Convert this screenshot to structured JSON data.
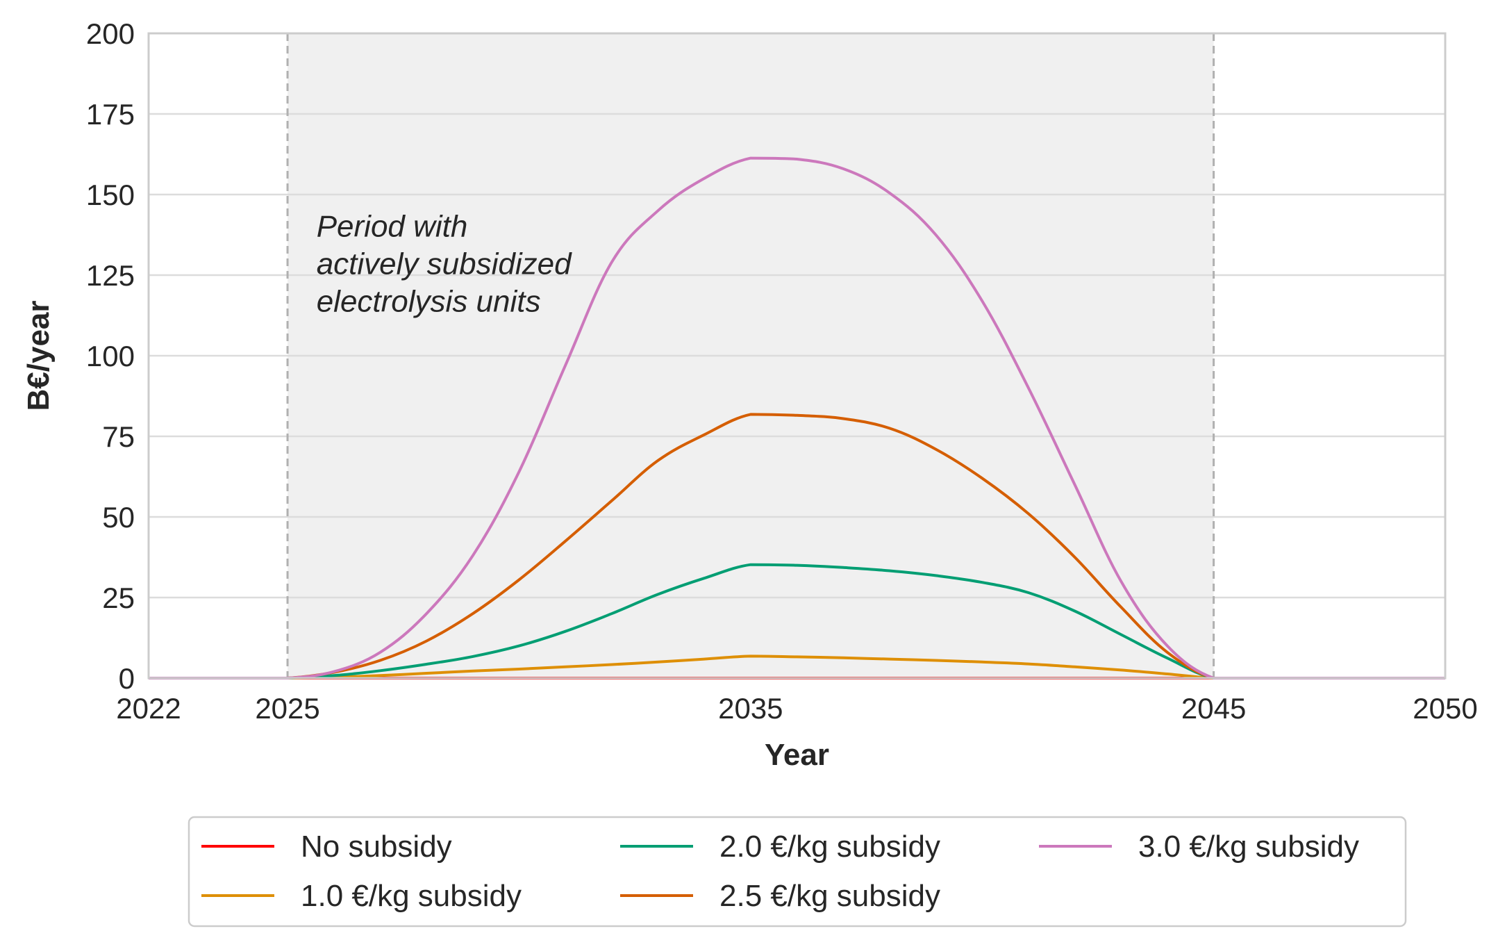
{
  "chart_data": {
    "type": "line",
    "title": "",
    "xlabel": "Year",
    "ylabel": "B€/year",
    "xlim": [
      2022,
      2050
    ],
    "ylim": [
      0,
      200
    ],
    "xticks": [
      2022,
      2025,
      2035,
      2045,
      2050
    ],
    "yticks": [
      0,
      25,
      50,
      75,
      100,
      125,
      150,
      175,
      200
    ],
    "grid": "horizontal",
    "background_colors": {
      "plot": "#ffffff",
      "shaded_region": "#f0f0f0",
      "grid": "#dcdcdc",
      "spine": "#cccccc",
      "vline": "#b0b0b0"
    },
    "shaded_region": {
      "x_start": 2025,
      "x_end": 2045
    },
    "annotation": {
      "lines": [
        "Period with",
        "actively subsidized",
        "electrolysis units"
      ],
      "x": 2026,
      "y": 137
    },
    "x": [
      2022,
      2023,
      2024,
      2025,
      2026,
      2027,
      2028,
      2029,
      2030,
      2031,
      2032,
      2033,
      2034,
      2035,
      2036,
      2037,
      2038,
      2039,
      2040,
      2041,
      2042,
      2043,
      2044,
      2045,
      2046,
      2047,
      2048,
      2049,
      2050
    ],
    "series": [
      {
        "name": "No subsidy",
        "color": "#ff0000",
        "values": [
          0,
          0,
          0,
          0,
          0,
          0,
          0,
          0,
          0,
          0,
          0,
          0,
          0,
          0,
          0,
          0,
          0,
          0,
          0,
          0,
          0,
          0,
          0,
          0,
          0,
          0,
          0,
          0,
          0
        ]
      },
      {
        "name": "1.0 €/kg subsidy",
        "color": "#de8f05",
        "values": [
          0,
          0,
          0,
          0,
          0.3,
          0.8,
          1.5,
          2.2,
          2.8,
          3.5,
          4.2,
          5.0,
          5.9,
          6.8,
          6.6,
          6.3,
          5.9,
          5.5,
          5.0,
          4.4,
          3.5,
          2.5,
          1.3,
          0,
          0,
          0,
          0,
          0,
          0
        ]
      },
      {
        "name": "2.0 €/kg subsidy",
        "color": "#029e73",
        "values": [
          0,
          0,
          0,
          0,
          0.8,
          2.3,
          4.3,
          6.7,
          10.0,
          14.5,
          20.0,
          26.0,
          31.0,
          35.2,
          35.0,
          34.3,
          33.3,
          31.8,
          29.7,
          26.5,
          20.8,
          13.5,
          6.2,
          0,
          0,
          0,
          0,
          0,
          0
        ]
      },
      {
        "name": "2.5 €/kg subsidy",
        "color": "#d55e00",
        "values": [
          0,
          0,
          0,
          0,
          1.8,
          5.5,
          11.5,
          20.0,
          30.5,
          42.5,
          55.0,
          67.5,
          75.5,
          81.8,
          81.5,
          80.5,
          77.5,
          71.0,
          62.0,
          51.0,
          37.5,
          22.0,
          8.0,
          0,
          0,
          0,
          0,
          0,
          0
        ]
      },
      {
        "name": "3.0 €/kg subsidy",
        "color": "#cc78bc",
        "values": [
          0,
          0,
          0,
          0,
          2.0,
          8.0,
          20.0,
          38.0,
          64.0,
          97.0,
          129.0,
          145.0,
          155.0,
          161.3,
          161.0,
          158.0,
          150.5,
          137.5,
          117.0,
          90.0,
          60.0,
          30.0,
          10.0,
          0,
          0,
          0,
          0,
          0,
          0
        ]
      }
    ],
    "legend": {
      "placement": "bottom-center",
      "columns": 3
    }
  }
}
